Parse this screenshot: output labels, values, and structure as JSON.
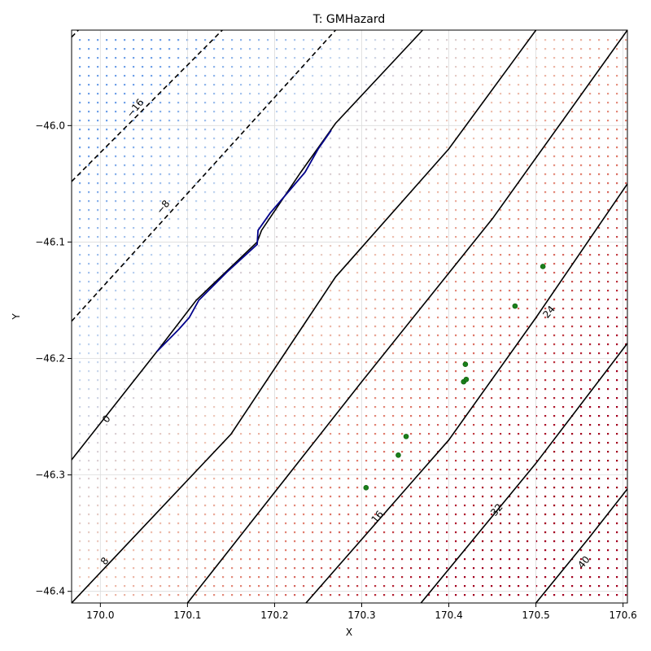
{
  "chart_data": {
    "type": "contour",
    "title": "T: GMHazard",
    "xlabel": "X",
    "ylabel": "Y",
    "xlim": [
      169.967,
      170.605
    ],
    "ylim": [
      -46.41,
      -45.918
    ],
    "grid": true,
    "x_ticks": [
      {
        "value": 170.0,
        "label": "170.0"
      },
      {
        "value": 170.1,
        "label": "170.1"
      },
      {
        "value": 170.2,
        "label": "170.2"
      },
      {
        "value": 170.3,
        "label": "170.3"
      },
      {
        "value": 170.4,
        "label": "170.4"
      },
      {
        "value": 170.5,
        "label": "170.5"
      },
      {
        "value": 170.6,
        "label": "170.6"
      }
    ],
    "y_ticks": [
      {
        "value": -46.0,
        "label": "−46.0"
      },
      {
        "value": -46.1,
        "label": "−46.1"
      },
      {
        "value": -46.2,
        "label": "−46.2"
      },
      {
        "value": -46.3,
        "label": "−46.3"
      },
      {
        "value": -46.4,
        "label": "−46.4"
      }
    ],
    "contours": [
      {
        "level": -16,
        "label": "−16",
        "style": "dashed",
        "points": [
          [
            169.967,
            -45.924
          ],
          [
            169.985,
            -45.91
          ]
        ],
        "label_at": [
          170.04,
          -45.985
        ]
      },
      {
        "level": -8,
        "label": "−8",
        "style": "dashed",
        "points": [
          [
            169.967,
            -46.048
          ],
          [
            170.14,
            -45.918
          ]
        ],
        "label_at": [
          170.072,
          -46.07
        ]
      },
      {
        "level": -8,
        "label": "",
        "style": "dashed",
        "points": [
          [
            169.967,
            -46.168
          ],
          [
            170.27,
            -45.918
          ]
        ],
        "label_at": null
      },
      {
        "level": 0,
        "label": "0",
        "style": "solid",
        "points": [
          [
            169.967,
            -46.287
          ],
          [
            170.065,
            -46.194
          ],
          [
            170.11,
            -46.15
          ],
          [
            170.18,
            -46.1
          ],
          [
            170.185,
            -46.09
          ],
          [
            170.23,
            -46.04
          ],
          [
            170.27,
            -45.998
          ],
          [
            170.37,
            -45.918
          ]
        ],
        "label_at": [
          170.007,
          -46.252
        ]
      },
      {
        "level": 8,
        "label": "8",
        "style": "solid",
        "points": [
          [
            169.967,
            -46.41
          ],
          [
            170.15,
            -46.265
          ],
          [
            170.27,
            -46.13
          ],
          [
            170.4,
            -46.02
          ],
          [
            170.5,
            -45.918
          ]
        ],
        "label_at": [
          170.005,
          -46.374
        ]
      },
      {
        "level": 16,
        "label": "16",
        "style": "solid",
        "points": [
          [
            170.1,
            -46.41
          ],
          [
            170.3,
            -46.22
          ],
          [
            170.45,
            -46.08
          ],
          [
            170.605,
            -45.918
          ]
        ],
        "label_at": [
          170.318,
          -46.336
        ]
      },
      {
        "level": 24,
        "label": "24",
        "style": "solid",
        "points": [
          [
            170.236,
            -46.41
          ],
          [
            170.4,
            -46.27
          ],
          [
            170.5,
            -46.165
          ],
          [
            170.605,
            -46.05
          ]
        ],
        "label_at": [
          170.515,
          -46.16
        ]
      },
      {
        "level": 32,
        "label": "32",
        "style": "solid",
        "points": [
          [
            170.368,
            -46.41
          ],
          [
            170.5,
            -46.29
          ],
          [
            170.605,
            -46.187
          ]
        ],
        "label_at": [
          170.455,
          -46.33
        ]
      },
      {
        "level": 40,
        "label": "40",
        "style": "solid",
        "points": [
          [
            170.5,
            -46.41
          ],
          [
            170.56,
            -46.355
          ],
          [
            170.605,
            -46.312
          ]
        ],
        "label_at": [
          170.555,
          -46.375
        ]
      }
    ],
    "boundary_line": {
      "color": "#00008b",
      "points": [
        [
          170.065,
          -46.194
        ],
        [
          170.09,
          -46.175
        ],
        [
          170.102,
          -46.165
        ],
        [
          170.113,
          -46.15
        ],
        [
          170.145,
          -46.126
        ],
        [
          170.18,
          -46.102
        ],
        [
          170.181,
          -46.09
        ],
        [
          170.195,
          -46.075
        ],
        [
          170.218,
          -46.055
        ],
        [
          170.235,
          -46.04
        ],
        [
          170.25,
          -46.02
        ],
        [
          170.265,
          -46.004
        ]
      ]
    },
    "stations": {
      "color": "#1a7f1a",
      "points": [
        [
          170.305,
          -46.311
        ],
        [
          170.342,
          -46.283
        ],
        [
          170.351,
          -46.267
        ],
        [
          170.417,
          -46.22
        ],
        [
          170.42,
          -46.218
        ],
        [
          170.419,
          -46.205
        ],
        [
          170.476,
          -46.155
        ],
        [
          170.508,
          -46.121
        ]
      ]
    },
    "background_field": {
      "colormap": [
        "#6fa0e8",
        "#c6d8f0",
        "#f0c8b8",
        "#e07a6a",
        "#a3001e"
      ],
      "zero_line_reference": [
        [
          169.967,
          -46.287
        ],
        [
          170.37,
          -45.918
        ]
      ],
      "value_range": [
        -24,
        48
      ]
    }
  }
}
